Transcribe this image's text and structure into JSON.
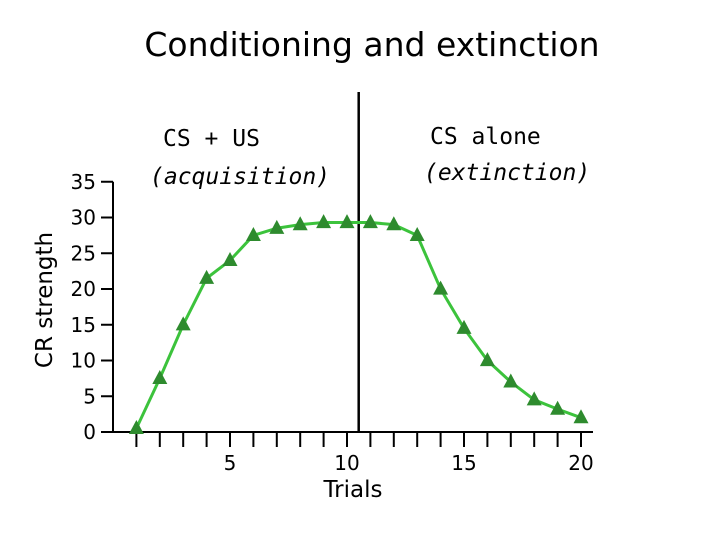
{
  "chart_data": {
    "type": "line",
    "title": "Conditioning and extinction",
    "xlabel": "Trials",
    "ylabel": "CR strength",
    "x_ticks": [
      5,
      10,
      15,
      20
    ],
    "y_ticks": [
      0,
      5,
      10,
      15,
      20,
      25,
      30,
      35
    ],
    "ylim": [
      0,
      35
    ],
    "x": [
      1,
      2,
      3,
      4,
      5,
      6,
      7,
      8,
      9,
      10,
      11,
      12,
      13,
      14,
      15,
      16,
      17,
      18,
      19,
      20
    ],
    "series": [
      {
        "values": [
          0.5,
          7.5,
          15,
          21.5,
          24,
          27.5,
          28.5,
          29,
          29.3,
          29.3,
          29.3,
          29,
          27.5,
          20,
          14.5,
          10,
          7,
          4.5,
          3.2,
          2
        ]
      }
    ],
    "divider_after_trial": 10.5,
    "annotations": {
      "acquisition_line1": "CS + US",
      "acquisition_line2": "(acquisition)",
      "extinction_line1": "CS alone",
      "extinction_line2": "(extinction)"
    },
    "colors": {
      "line": "#3cc33c",
      "marker": "#2e8b2e"
    },
    "grid": false
  }
}
